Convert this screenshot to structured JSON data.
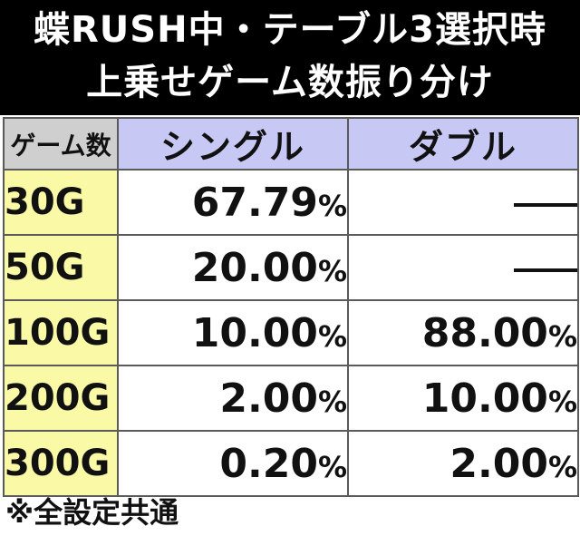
{
  "title": {
    "line1": "蝶RUSH中・テーブル3選択時",
    "line2": "上乗せゲーム数振り分け"
  },
  "table": {
    "headers": [
      "ゲーム数",
      "シングル",
      "ダブル"
    ],
    "rows": [
      {
        "game": "30G",
        "single": "67.79",
        "double": null
      },
      {
        "game": "50G",
        "single": "20.00",
        "double": null
      },
      {
        "game": "100G",
        "single": "10.00",
        "double": "88.00"
      },
      {
        "game": "200G",
        "single": "2.00",
        "double": "10.00"
      },
      {
        "game": "300G",
        "single": "0.20",
        "double": "2.00"
      }
    ],
    "unit": "%"
  },
  "footnote": "※全設定共通",
  "colors": {
    "header_bg": "#000000",
    "corner_bg": "#cfcfcf",
    "column_header_bg": "#c8c8f4",
    "game_cell_bg": "#fafaa6",
    "border": "#5a5a5a"
  }
}
